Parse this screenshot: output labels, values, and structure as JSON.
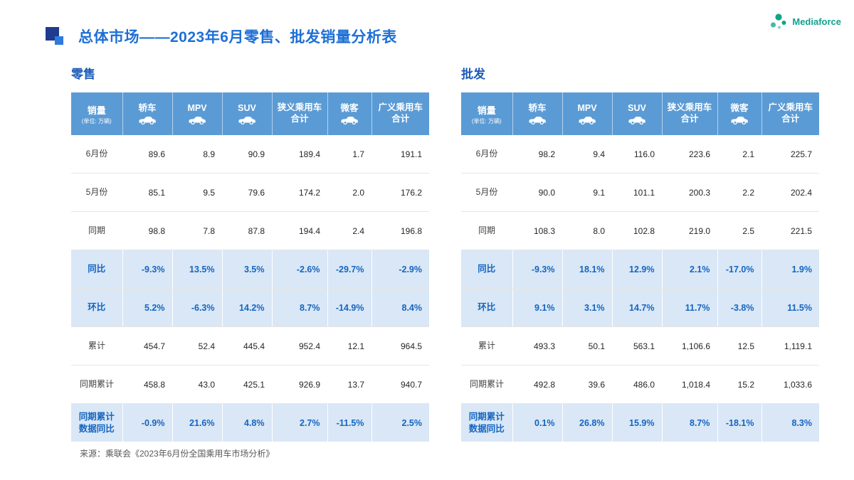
{
  "slide": {
    "title": "总体市场——2023年6月零售、批发销量分析表",
    "logo_text": "Mediaforce",
    "source": "来源：乘联会《2023年6月份全国乘用车市场分析》"
  },
  "colors": {
    "header_bg": "#5b9bd5",
    "highlight_bg": "#d9e7f6",
    "highlight_text": "#1565c0",
    "title_color": "#1e6fd6",
    "section_title_color": "#1c5bb8",
    "logo_color": "#13a08d"
  },
  "chart_data": [
    {
      "type": "table",
      "section_title": "零售",
      "header_label": "销量",
      "header_unit": "(单位: 万辆)",
      "columns": [
        "轿车",
        "MPV",
        "SUV",
        "狭义乘用车\n合计",
        "微客",
        "广义乘用车\n合计"
      ],
      "rows": [
        {
          "label": "6月份",
          "values": [
            "89.6",
            "8.9",
            "90.9",
            "189.4",
            "1.7",
            "191.1"
          ],
          "highlight": false
        },
        {
          "label": "5月份",
          "values": [
            "85.1",
            "9.5",
            "79.6",
            "174.2",
            "2.0",
            "176.2"
          ],
          "highlight": false
        },
        {
          "label": "同期",
          "values": [
            "98.8",
            "7.8",
            "87.8",
            "194.4",
            "2.4",
            "196.8"
          ],
          "highlight": false
        },
        {
          "label": "同比",
          "values": [
            "-9.3%",
            "13.5%",
            "3.5%",
            "-2.6%",
            "-29.7%",
            "-2.9%"
          ],
          "highlight": true
        },
        {
          "label": "环比",
          "values": [
            "5.2%",
            "-6.3%",
            "14.2%",
            "8.7%",
            "-14.9%",
            "8.4%"
          ],
          "highlight": true
        },
        {
          "label": "累计",
          "values": [
            "454.7",
            "52.4",
            "445.4",
            "952.4",
            "12.1",
            "964.5"
          ],
          "highlight": false
        },
        {
          "label": "同期累计",
          "values": [
            "458.8",
            "43.0",
            "425.1",
            "926.9",
            "13.7",
            "940.7"
          ],
          "highlight": false
        },
        {
          "label": "同期累计\n数据同比",
          "values": [
            "-0.9%",
            "21.6%",
            "4.8%",
            "2.7%",
            "-11.5%",
            "2.5%"
          ],
          "highlight": true
        }
      ]
    },
    {
      "type": "table",
      "section_title": "批发",
      "header_label": "销量",
      "header_unit": "(单位: 万辆)",
      "columns": [
        "轿车",
        "MPV",
        "SUV",
        "狭义乘用车\n合计",
        "微客",
        "广义乘用车\n合计"
      ],
      "rows": [
        {
          "label": "6月份",
          "values": [
            "98.2",
            "9.4",
            "116.0",
            "223.6",
            "2.1",
            "225.7"
          ],
          "highlight": false
        },
        {
          "label": "5月份",
          "values": [
            "90.0",
            "9.1",
            "101.1",
            "200.3",
            "2.2",
            "202.4"
          ],
          "highlight": false
        },
        {
          "label": "同期",
          "values": [
            "108.3",
            "8.0",
            "102.8",
            "219.0",
            "2.5",
            "221.5"
          ],
          "highlight": false
        },
        {
          "label": "同比",
          "values": [
            "-9.3%",
            "18.1%",
            "12.9%",
            "2.1%",
            "-17.0%",
            "1.9%"
          ],
          "highlight": true
        },
        {
          "label": "环比",
          "values": [
            "9.1%",
            "3.1%",
            "14.7%",
            "11.7%",
            "-3.8%",
            "11.5%"
          ],
          "highlight": true
        },
        {
          "label": "累计",
          "values": [
            "493.3",
            "50.1",
            "563.1",
            "1,106.6",
            "12.5",
            "1,119.1"
          ],
          "highlight": false
        },
        {
          "label": "同期累计",
          "values": [
            "492.8",
            "39.6",
            "486.0",
            "1,018.4",
            "15.2",
            "1,033.6"
          ],
          "highlight": false
        },
        {
          "label": "同期累计\n数据同比",
          "values": [
            "0.1%",
            "26.8%",
            "15.9%",
            "8.7%",
            "-18.1%",
            "8.3%"
          ],
          "highlight": true
        }
      ]
    }
  ]
}
